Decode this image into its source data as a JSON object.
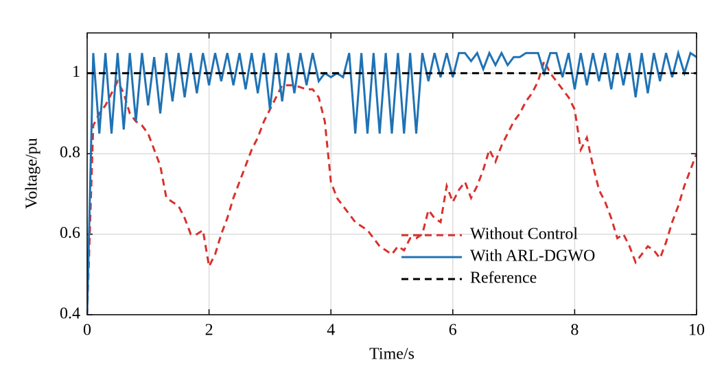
{
  "chart_data": {
    "type": "line",
    "xlabel": "Time/s",
    "ylabel": "Voltage/pu",
    "x": [
      0,
      0.1,
      0.2,
      0.3,
      0.4,
      0.5,
      0.6,
      0.7,
      0.8,
      0.9,
      1,
      1.1,
      1.2,
      1.3,
      1.4,
      1.5,
      1.6,
      1.7,
      1.8,
      1.9,
      2,
      2.1,
      2.2,
      2.3,
      2.4,
      2.5,
      2.6,
      2.7,
      2.8,
      2.9,
      3,
      3.1,
      3.2,
      3.3,
      3.4,
      3.5,
      3.6,
      3.7,
      3.8,
      3.9,
      4,
      4.1,
      4.2,
      4.3,
      4.4,
      4.5,
      4.6,
      4.7,
      4.8,
      4.9,
      5,
      5.1,
      5.2,
      5.3,
      5.4,
      5.5,
      5.6,
      5.7,
      5.8,
      5.9,
      6,
      6.1,
      6.2,
      6.3,
      6.4,
      6.5,
      6.6,
      6.7,
      6.8,
      6.9,
      7,
      7.1,
      7.2,
      7.3,
      7.4,
      7.5,
      7.6,
      7.7,
      7.8,
      7.9,
      8,
      8.1,
      8.2,
      8.3,
      8.4,
      8.5,
      8.6,
      8.7,
      8.8,
      8.9,
      9,
      9.1,
      9.2,
      9.3,
      9.4,
      9.5,
      9.6,
      9.7,
      9.8,
      9.9,
      10
    ],
    "series": [
      {
        "name": "Without Control",
        "color": "#d9302c",
        "dash": "dashed",
        "values": [
          0.4,
          0.87,
          0.9,
          0.92,
          0.95,
          0.98,
          0.95,
          0.9,
          0.88,
          0.87,
          0.85,
          0.81,
          0.77,
          0.69,
          0.68,
          0.67,
          0.64,
          0.6,
          0.6,
          0.61,
          0.52,
          0.55,
          0.6,
          0.64,
          0.69,
          0.73,
          0.77,
          0.81,
          0.84,
          0.88,
          0.91,
          0.94,
          0.97,
          0.97,
          0.97,
          0.965,
          0.96,
          0.96,
          0.94,
          0.88,
          0.73,
          0.69,
          0.67,
          0.65,
          0.63,
          0.62,
          0.61,
          0.59,
          0.57,
          0.56,
          0.55,
          0.57,
          0.56,
          0.59,
          0.59,
          0.6,
          0.66,
          0.64,
          0.63,
          0.72,
          0.68,
          0.71,
          0.73,
          0.69,
          0.72,
          0.76,
          0.81,
          0.78,
          0.82,
          0.85,
          0.88,
          0.9,
          0.93,
          0.95,
          0.98,
          1.03,
          1,
          0.98,
          0.96,
          0.94,
          0.91,
          0.81,
          0.84,
          0.77,
          0.71,
          0.68,
          0.64,
          0.59,
          0.6,
          0.57,
          0.53,
          0.55,
          0.57,
          0.56,
          0.54,
          0.58,
          0.63,
          0.67,
          0.72,
          0.76,
          0.8
        ]
      },
      {
        "name": "With ARL-DGWO",
        "color": "#1f72b4",
        "dash": "solid",
        "values": [
          0.4,
          1.05,
          0.85,
          1.05,
          0.85,
          1.05,
          0.86,
          1.05,
          0.88,
          1.05,
          0.92,
          1.04,
          0.9,
          1.05,
          0.93,
          1.05,
          0.94,
          1.05,
          0.95,
          1.05,
          0.97,
          1.05,
          0.98,
          1.05,
          0.97,
          1.05,
          0.96,
          1.05,
          0.95,
          1.05,
          0.91,
          1.05,
          0.93,
          1.05,
          0.95,
          1.05,
          0.97,
          1.05,
          0.98,
          1,
          0.99,
          1,
          0.99,
          1.05,
          0.85,
          1.05,
          0.85,
          1.05,
          0.85,
          1.05,
          0.85,
          1.05,
          0.85,
          1.05,
          0.85,
          1.05,
          0.98,
          1.05,
          0.99,
          1.05,
          0.99,
          1.05,
          1.05,
          1.03,
          1.05,
          1.01,
          1.05,
          1.02,
          1.05,
          1.02,
          1.04,
          1.04,
          1.05,
          1.05,
          1.05,
          1,
          1.05,
          1.05,
          0.99,
          1.05,
          0.96,
          1.05,
          0.97,
          1.05,
          0.98,
          1.05,
          0.96,
          1.05,
          0.97,
          1.05,
          0.94,
          1.05,
          0.95,
          1.05,
          0.98,
          1.05,
          0.99,
          1.05,
          1,
          1.05,
          1.04
        ]
      },
      {
        "name": "Reference",
        "color": "#000000",
        "dash": "dashed",
        "x": [
          0,
          10
        ],
        "values": [
          1,
          1
        ]
      }
    ],
    "xlim": [
      0,
      10
    ],
    "xticks": [
      0,
      2,
      4,
      6,
      8,
      10
    ],
    "ylim": [
      0.4,
      1.1
    ],
    "yticks": [
      0.4,
      0.6,
      0.8,
      1
    ],
    "grid": true,
    "legend": "lower right"
  }
}
